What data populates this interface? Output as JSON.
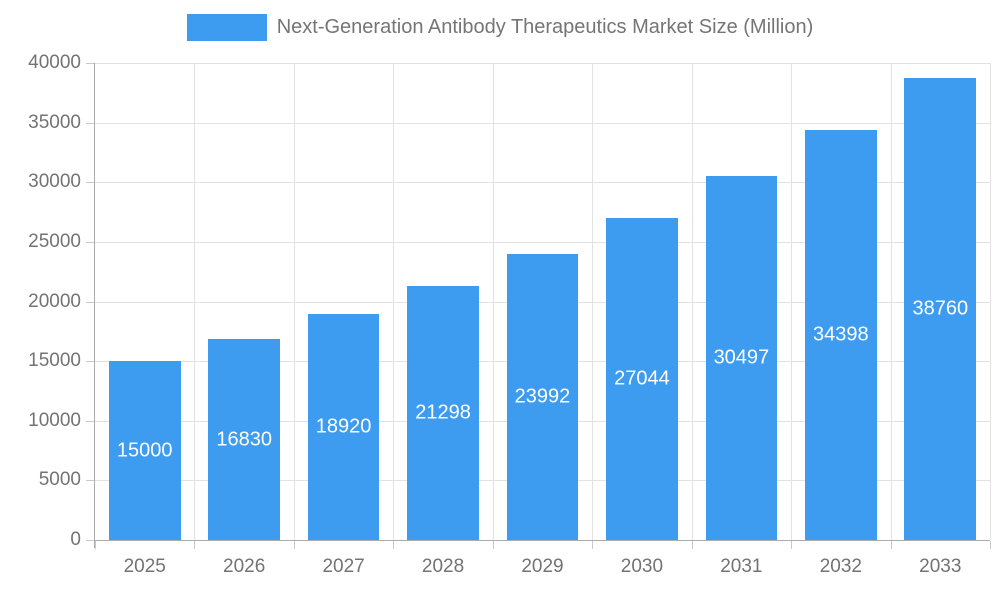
{
  "chart_data": {
    "type": "bar",
    "title": "Next-Generation Antibody Therapeutics Market Size (Million)",
    "legend": {
      "label": "Next-Generation Antibody Therapeutics Market Size (Million)",
      "position": "top"
    },
    "categories": [
      "2025",
      "2026",
      "2027",
      "2028",
      "2029",
      "2030",
      "2031",
      "2032",
      "2033"
    ],
    "values": [
      15000,
      16830,
      18920,
      21298,
      23992,
      27044,
      30497,
      34398,
      38760
    ],
    "value_labels_shown": true,
    "xlabel": "",
    "ylabel": "",
    "ylim": [
      0,
      40000
    ],
    "ytick_step": 5000,
    "ytick_labels": [
      "0",
      "5000",
      "10000",
      "15000",
      "20000",
      "25000",
      "30000",
      "35000",
      "40000"
    ],
    "grid": true,
    "colors": {
      "bar": "#3D9CF0",
      "value_label": "#ffffff",
      "axis_text": "#737373",
      "legend_text": "#757575",
      "gridline": "#e2e2e2",
      "axis_line": "#ababab",
      "tick": "#c9c9c9",
      "background": "#ffffff"
    }
  }
}
